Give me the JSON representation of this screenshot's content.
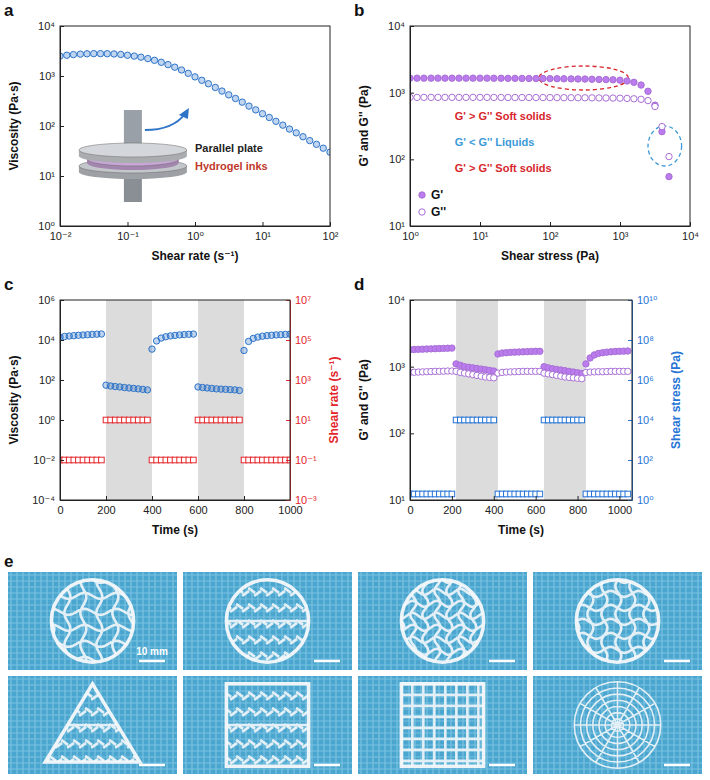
{
  "chart_data": [
    {
      "type": "scatter",
      "panel_label": "a",
      "x_label": "Shear rate (s⁻¹)",
      "y_label": "Viscosity (Pa·s)",
      "log": true,
      "xlim": [
        0.01,
        100
      ],
      "ylim": [
        1,
        10000
      ],
      "xticks": [
        {
          "value": 0.01,
          "label": "10⁻²"
        },
        {
          "value": 0.1,
          "label": "10⁻¹"
        },
        {
          "value": 1,
          "label": "10⁰"
        },
        {
          "value": 10,
          "label": "10¹"
        },
        {
          "value": 100,
          "label": "10²"
        }
      ],
      "yticks": [
        {
          "value": 1,
          "label": "10⁰"
        },
        {
          "value": 10,
          "label": "10¹"
        },
        {
          "value": 100,
          "label": "10²"
        },
        {
          "value": 1000,
          "label": "10³"
        },
        {
          "value": 10000,
          "label": "10⁴"
        }
      ],
      "annotations": [
        {
          "text": "Parallel plate",
          "color": "#222222"
        },
        {
          "text": "Hydrogel inks",
          "color": "#c0392b"
        }
      ],
      "x": [
        0.01,
        0.0126,
        0.0158,
        0.02,
        0.0251,
        0.0316,
        0.0398,
        0.0501,
        0.0631,
        0.0794,
        0.1,
        0.126,
        0.158,
        0.2,
        0.251,
        0.316,
        0.398,
        0.501,
        0.631,
        0.794,
        1,
        1.26,
        1.58,
        2,
        2.51,
        3.16,
        3.98,
        5.01,
        6.31,
        7.94,
        10,
        12.6,
        15.8,
        20,
        25.1,
        31.6,
        39.8,
        50.1,
        63.1,
        79.4,
        100
      ],
      "values": [
        2500,
        2600,
        2680,
        2740,
        2780,
        2800,
        2800,
        2790,
        2760,
        2700,
        2600,
        2500,
        2380,
        2230,
        2060,
        1880,
        1690,
        1500,
        1320,
        1130,
        960,
        820,
        700,
        590,
        500,
        420,
        355,
        300,
        250,
        210,
        176,
        148,
        124,
        104,
        87,
        73,
        61,
        51,
        43,
        36,
        30
      ],
      "color": "#2e74c9",
      "marker": "circle-light"
    },
    {
      "type": "scatter",
      "panel_label": "b",
      "x_label": "Shear stress (Pa)",
      "y_label": "G' and G'' (Pa)",
      "log": true,
      "xlim": [
        1,
        10000
      ],
      "ylim": [
        10,
        10000
      ],
      "xticks": [
        {
          "value": 1,
          "label": "10⁰"
        },
        {
          "value": 10,
          "label": "10¹"
        },
        {
          "value": 100,
          "label": "10²"
        },
        {
          "value": 1000,
          "label": "10³"
        },
        {
          "value": 10000,
          "label": "10⁴"
        }
      ],
      "yticks": [
        {
          "value": 10,
          "label": "10¹"
        },
        {
          "value": 100,
          "label": "10²"
        },
        {
          "value": 1000,
          "label": "10³"
        },
        {
          "value": 10000,
          "label": "10⁴"
        }
      ],
      "legend": "lower left",
      "annotations": [
        {
          "text": "G' > G'' Soft solids",
          "color": "#d6262c"
        },
        {
          "text": "G' < G'' Liquids",
          "color": "#3b9ad9"
        },
        {
          "text": "G' > G'' Soft solids",
          "color": "#d6262c"
        }
      ],
      "x": [
        1,
        1.26,
        1.58,
        2,
        2.51,
        3.16,
        3.98,
        5.01,
        6.31,
        7.94,
        10,
        12.6,
        15.8,
        20,
        25.1,
        31.6,
        39.8,
        50.1,
        63.1,
        79.4,
        100,
        126,
        158,
        200,
        251,
        316,
        398,
        501,
        631,
        794,
        1000,
        1260,
        1580,
        2000,
        2510,
        3160,
        3980,
        5010
      ],
      "series": [
        {
          "name": "G'",
          "color": "#a86fd6",
          "marker": "circle",
          "values": [
            1650,
            1650,
            1650,
            1650,
            1650,
            1650,
            1650,
            1650,
            1650,
            1650,
            1650,
            1650,
            1645,
            1645,
            1640,
            1640,
            1635,
            1635,
            1630,
            1630,
            1625,
            1620,
            1615,
            1610,
            1605,
            1600,
            1590,
            1580,
            1570,
            1560,
            1540,
            1500,
            1430,
            1300,
            1050,
            650,
            260,
            55
          ]
        },
        {
          "name": "G''",
          "color": "#a86fd6",
          "marker": "circle-open",
          "values": [
            850,
            850,
            850,
            850,
            850,
            850,
            850,
            850,
            850,
            850,
            850,
            850,
            848,
            848,
            846,
            846,
            845,
            845,
            844,
            844,
            843,
            842,
            841,
            840,
            840,
            838,
            836,
            834,
            832,
            830,
            826,
            820,
            810,
            795,
            760,
            620,
            310,
            110
          ]
        }
      ]
    },
    {
      "type": "scatter",
      "panel_label": "c",
      "x_label": "Time (s)",
      "y_label": "Viscosity (Pa·s)",
      "y2_label": "Shear rate (s⁻¹)",
      "log": "y",
      "xlim": [
        0,
        1000
      ],
      "ylim": [
        0.0001,
        1000000
      ],
      "y2lim": [
        0.001,
        10000000
      ],
      "xticks": [
        0,
        200,
        400,
        600,
        800,
        1000
      ],
      "yticks": [
        {
          "value": 0.0001,
          "label": "10⁻⁴"
        },
        {
          "value": 0.01,
          "label": "10⁻²"
        },
        {
          "value": 1,
          "label": "10⁰"
        },
        {
          "value": 100,
          "label": "10²"
        },
        {
          "value": 10000,
          "label": "10⁴"
        },
        {
          "value": 1000000,
          "label": "10⁶"
        }
      ],
      "y2ticks": [
        {
          "value": 0.001,
          "label": "10⁻³"
        },
        {
          "value": 0.1,
          "label": "10⁻¹"
        },
        {
          "value": 10,
          "label": "10¹"
        },
        {
          "value": 1000,
          "label": "10³"
        },
        {
          "value": 100000,
          "label": "10⁵"
        },
        {
          "value": 10000000,
          "label": "10⁷"
        }
      ],
      "x": [
        0,
        20,
        40,
        60,
        80,
        100,
        120,
        140,
        160,
        180,
        200,
        220,
        240,
        260,
        280,
        300,
        320,
        340,
        360,
        380,
        400,
        420,
        440,
        460,
        480,
        500,
        520,
        540,
        560,
        580,
        600,
        620,
        640,
        660,
        680,
        700,
        720,
        740,
        760,
        780,
        800,
        820,
        840,
        860,
        880,
        900,
        920,
        940,
        960,
        980,
        1000
      ],
      "series": [
        {
          "color": "#2e74c9",
          "marker": "circle-light",
          "values": [
            14000,
            15000,
            15800,
            16500,
            17200,
            17800,
            18400,
            19000,
            19500,
            20000,
            55,
            50,
            47,
            45,
            42,
            40,
            38,
            36,
            34,
            32,
            3500,
            9000,
            12500,
            14500,
            16000,
            17000,
            18000,
            18700,
            19300,
            19800,
            45,
            42,
            40,
            38,
            36,
            35,
            34,
            33,
            32,
            30,
            3000,
            8500,
            12000,
            14000,
            15500,
            16500,
            17300,
            18000,
            18500,
            19000,
            19500
          ]
        },
        {
          "color": "#e3262b",
          "marker": "square-open",
          "axis": "y2",
          "values": [
            0.1,
            0.1,
            0.1,
            0.1,
            0.1,
            0.1,
            0.1,
            0.1,
            0.1,
            0.1,
            10,
            10,
            10,
            10,
            10,
            10,
            10,
            10,
            10,
            10,
            0.1,
            0.1,
            0.1,
            0.1,
            0.1,
            0.1,
            0.1,
            0.1,
            0.1,
            0.1,
            10,
            10,
            10,
            10,
            10,
            10,
            10,
            10,
            10,
            10,
            0.1,
            0.1,
            0.1,
            0.1,
            0.1,
            0.1,
            0.1,
            0.1,
            0.1,
            0.1,
            0.1
          ]
        }
      ]
    },
    {
      "type": "scatter",
      "panel_label": "d",
      "x_label": "Time (s)",
      "y_label": "G' and G'' (Pa)",
      "y2_label": "Shear stress (Pa)",
      "log": "y",
      "xlim": [
        0,
        1060
      ],
      "ylim": [
        10,
        10000
      ],
      "y2lim": [
        1,
        10000000000
      ],
      "xticks": [
        0,
        200,
        400,
        600,
        800,
        1000
      ],
      "yticks": [
        {
          "value": 10,
          "label": "10¹"
        },
        {
          "value": 100,
          "label": "10²"
        },
        {
          "value": 1000,
          "label": "10³"
        },
        {
          "value": 10000,
          "label": "10⁴"
        }
      ],
      "y2ticks": [
        {
          "value": 1,
          "label": "10⁰"
        },
        {
          "value": 100,
          "label": "10²"
        },
        {
          "value": 10000,
          "label": "10⁴"
        },
        {
          "value": 1000000,
          "label": "10⁶"
        },
        {
          "value": 100000000,
          "label": "10⁸"
        },
        {
          "value": 10000000000,
          "label": "10¹⁰"
        }
      ],
      "x": [
        0,
        20,
        40,
        60,
        80,
        100,
        120,
        140,
        160,
        180,
        200,
        220,
        240,
        260,
        280,
        300,
        320,
        340,
        360,
        380,
        400,
        420,
        440,
        460,
        480,
        500,
        520,
        540,
        560,
        580,
        600,
        620,
        640,
        660,
        680,
        700,
        720,
        740,
        760,
        780,
        800,
        820,
        840,
        860,
        880,
        900,
        920,
        940,
        960,
        980,
        1000,
        1020,
        1040
      ],
      "series": [
        {
          "color": "#a86fd6",
          "marker": "circle",
          "values": [
            1800,
            1810,
            1820,
            1830,
            1840,
            1850,
            1860,
            1870,
            1880,
            1890,
            1900,
            1100,
            1050,
            1000,
            980,
            960,
            940,
            920,
            900,
            880,
            860,
            1550,
            1600,
            1620,
            1640,
            1650,
            1660,
            1670,
            1680,
            1690,
            1700,
            1700,
            1000,
            960,
            930,
            910,
            890,
            870,
            850,
            830,
            810,
            790,
            1100,
            1350,
            1500,
            1580,
            1620,
            1650,
            1670,
            1690,
            1700,
            1710,
            1720
          ]
        },
        {
          "color": "#a86fd6",
          "marker": "circle-open",
          "values": [
            820,
            825,
            830,
            835,
            840,
            845,
            850,
            850,
            855,
            860,
            860,
            850,
            820,
            800,
            780,
            760,
            740,
            720,
            700,
            690,
            680,
            800,
            820,
            830,
            835,
            840,
            845,
            850,
            850,
            850,
            850,
            850,
            800,
            780,
            760,
            740,
            720,
            700,
            690,
            680,
            670,
            660,
            820,
            830,
            835,
            840,
            840,
            845,
            850,
            850,
            850,
            850,
            850
          ]
        },
        {
          "color": "#2574d6",
          "marker": "square-open",
          "axis": "y2",
          "values": [
            2,
            2,
            2,
            2,
            2,
            2,
            2,
            2,
            2,
            2,
            2,
            10000,
            10000,
            10000,
            10000,
            10000,
            10000,
            10000,
            10000,
            10000,
            10000,
            2,
            2,
            2,
            2,
            2,
            2,
            2,
            2,
            2,
            2,
            2,
            10000,
            10000,
            10000,
            10000,
            10000,
            10000,
            10000,
            10000,
            10000,
            10000,
            2,
            2,
            2,
            2,
            2,
            2,
            2,
            2,
            2,
            2,
            2
          ]
        }
      ]
    }
  ],
  "photos": {
    "panel_label": "e",
    "scale_bar": "10 mm"
  }
}
